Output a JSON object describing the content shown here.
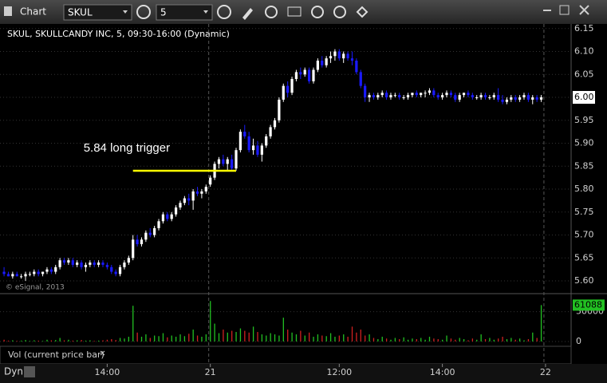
{
  "toolbar": {
    "title": "Chart",
    "symbol": "SKUL",
    "interval": "5"
  },
  "chart_data": {
    "type": "candlestick",
    "title": "SKUL, SKULLCANDY INC, 5, 09:30-16:00 (Dynamic)",
    "copyright": "© eSignal, 2013",
    "volume_title": "Vol (current price bar)",
    "footer": "Dyn",
    "up_color": "#ffffff",
    "down_color": "#1a1aff",
    "volume_up_color": "#22c022",
    "volume_down_color": "#d02020",
    "ylim": [
      5.574,
      6.16
    ],
    "yticks": [
      {
        "value": 5.6,
        "label": "5.60"
      },
      {
        "value": 5.65,
        "label": "5.65"
      },
      {
        "value": 5.7,
        "label": "5.70"
      },
      {
        "value": 5.75,
        "label": "5.75"
      },
      {
        "value": 5.8,
        "label": "5.80"
      },
      {
        "value": 5.85,
        "label": "5.85"
      },
      {
        "value": 5.9,
        "label": "5.90"
      },
      {
        "value": 5.95,
        "label": "5.95"
      },
      {
        "value": 6.0,
        "label": "6.00"
      },
      {
        "value": 6.05,
        "label": "6.05"
      },
      {
        "value": 6.1,
        "label": "6.10"
      },
      {
        "value": 6.15,
        "label": "6.15"
      }
    ],
    "volume_ylim": [
      0,
      75000
    ],
    "volume_yticks": [
      0,
      50000
    ],
    "xlim": [
      -0.2,
      127.5
    ],
    "xticks": [
      {
        "value": 24,
        "label": "14:00"
      },
      {
        "value": 48,
        "label": "21"
      },
      {
        "value": 78,
        "label": "12:00"
      },
      {
        "value": 102,
        "label": "14:00"
      },
      {
        "value": 126,
        "label": "22"
      }
    ],
    "separators": [
      48,
      126
    ],
    "annotation": {
      "text": "5.84 long trigger",
      "price": 5.84,
      "start": 30,
      "end": 54,
      "color": "#ffff00"
    },
    "ohlc": [
      [
        5.62,
        5.63,
        5.61,
        5.615
      ],
      [
        5.615,
        5.62,
        5.61,
        5.61
      ],
      [
        5.61,
        5.62,
        5.605,
        5.615
      ],
      [
        5.615,
        5.62,
        5.61,
        5.61
      ],
      [
        5.61,
        5.615,
        5.605,
        5.61
      ],
      [
        5.61,
        5.62,
        5.6,
        5.615
      ],
      [
        5.615,
        5.62,
        5.61,
        5.615
      ],
      [
        5.615,
        5.625,
        5.61,
        5.62
      ],
      [
        5.62,
        5.625,
        5.61,
        5.615
      ],
      [
        5.615,
        5.62,
        5.61,
        5.62
      ],
      [
        5.62,
        5.63,
        5.615,
        5.625
      ],
      [
        5.625,
        5.63,
        5.615,
        5.62
      ],
      [
        5.62,
        5.635,
        5.615,
        5.63
      ],
      [
        5.63,
        5.65,
        5.625,
        5.645
      ],
      [
        5.645,
        5.65,
        5.635,
        5.64
      ],
      [
        5.64,
        5.65,
        5.635,
        5.645
      ],
      [
        5.645,
        5.65,
        5.63,
        5.635
      ],
      [
        5.635,
        5.645,
        5.63,
        5.64
      ],
      [
        5.64,
        5.645,
        5.625,
        5.63
      ],
      [
        5.63,
        5.64,
        5.62,
        5.635
      ],
      [
        5.635,
        5.645,
        5.63,
        5.64
      ],
      [
        5.64,
        5.645,
        5.63,
        5.635
      ],
      [
        5.635,
        5.645,
        5.63,
        5.64
      ],
      [
        5.64,
        5.645,
        5.63,
        5.635
      ],
      [
        5.635,
        5.64,
        5.625,
        5.63
      ],
      [
        5.63,
        5.635,
        5.615,
        5.62
      ],
      [
        5.62,
        5.625,
        5.61,
        5.615
      ],
      [
        5.615,
        5.635,
        5.61,
        5.63
      ],
      [
        5.63,
        5.645,
        5.625,
        5.64
      ],
      [
        5.64,
        5.655,
        5.635,
        5.65
      ],
      [
        5.65,
        5.7,
        5.645,
        5.69
      ],
      [
        5.69,
        5.7,
        5.675,
        5.68
      ],
      [
        5.68,
        5.695,
        5.675,
        5.69
      ],
      [
        5.69,
        5.71,
        5.685,
        5.705
      ],
      [
        5.705,
        5.715,
        5.695,
        5.7
      ],
      [
        5.7,
        5.72,
        5.695,
        5.715
      ],
      [
        5.715,
        5.735,
        5.71,
        5.73
      ],
      [
        5.73,
        5.75,
        5.725,
        5.745
      ],
      [
        5.745,
        5.75,
        5.73,
        5.735
      ],
      [
        5.735,
        5.75,
        5.73,
        5.745
      ],
      [
        5.745,
        5.765,
        5.74,
        5.76
      ],
      [
        5.76,
        5.775,
        5.755,
        5.77
      ],
      [
        5.77,
        5.785,
        5.765,
        5.78
      ],
      [
        5.78,
        5.79,
        5.765,
        5.775
      ],
      [
        5.775,
        5.8,
        5.755,
        5.795
      ],
      [
        5.795,
        5.805,
        5.785,
        5.79
      ],
      [
        5.79,
        5.8,
        5.78,
        5.795
      ],
      [
        5.795,
        5.81,
        5.79,
        5.805
      ],
      [
        5.81,
        5.83,
        5.805,
        5.825
      ],
      [
        5.825,
        5.86,
        5.82,
        5.855
      ],
      [
        5.855,
        5.87,
        5.845,
        5.865
      ],
      [
        5.865,
        5.875,
        5.85,
        5.855
      ],
      [
        5.855,
        5.87,
        5.84,
        5.865
      ],
      [
        5.865,
        5.875,
        5.84,
        5.845
      ],
      [
        5.845,
        5.89,
        5.84,
        5.885
      ],
      [
        5.885,
        5.93,
        5.88,
        5.925
      ],
      [
        5.925,
        5.94,
        5.91,
        5.915
      ],
      [
        5.915,
        5.925,
        5.88,
        5.885
      ],
      [
        5.885,
        5.91,
        5.875,
        5.895
      ],
      [
        5.895,
        5.905,
        5.87,
        5.875
      ],
      [
        5.875,
        5.9,
        5.86,
        5.895
      ],
      [
        5.895,
        5.92,
        5.89,
        5.915
      ],
      [
        5.915,
        5.94,
        5.91,
        5.935
      ],
      [
        5.935,
        5.955,
        5.93,
        5.95
      ],
      [
        5.95,
        6.0,
        5.945,
        5.995
      ],
      [
        5.995,
        6.03,
        5.99,
        6.025
      ],
      [
        6.025,
        6.035,
        6.0,
        6.01
      ],
      [
        6.01,
        6.045,
        6.005,
        6.04
      ],
      [
        6.04,
        6.06,
        6.035,
        6.055
      ],
      [
        6.055,
        6.065,
        6.04,
        6.05
      ],
      [
        6.05,
        6.065,
        6.045,
        6.06
      ],
      [
        6.06,
        6.065,
        6.03,
        6.035
      ],
      [
        6.035,
        6.065,
        6.03,
        6.06
      ],
      [
        6.06,
        6.085,
        6.055,
        6.08
      ],
      [
        6.08,
        6.09,
        6.065,
        6.07
      ],
      [
        6.07,
        6.09,
        6.065,
        6.085
      ],
      [
        6.085,
        6.1,
        6.075,
        6.09
      ],
      [
        6.09,
        6.105,
        6.08,
        6.1
      ],
      [
        6.1,
        6.105,
        6.08,
        6.085
      ],
      [
        6.085,
        6.1,
        6.075,
        6.095
      ],
      [
        6.095,
        6.1,
        6.08,
        6.085
      ],
      [
        6.085,
        6.1,
        6.07,
        6.08
      ],
      [
        6.08,
        6.085,
        6.05,
        6.055
      ],
      [
        6.055,
        6.06,
        6.02,
        6.025
      ],
      [
        6.025,
        6.03,
        5.99,
        6.0
      ],
      [
        6.0,
        6.01,
        5.99,
        6.005
      ],
      [
        6.005,
        6.01,
        5.995,
        6.0
      ],
      [
        6.0,
        6.01,
        5.995,
        6.005
      ],
      [
        6.005,
        6.015,
        6.0,
        6.01
      ],
      [
        6.01,
        6.015,
        5.995,
        6.0
      ],
      [
        6.0,
        6.01,
        5.995,
        6.005
      ],
      [
        6.005,
        6.01,
        6.0,
        6.005
      ],
      [
        6.005,
        6.01,
        5.995,
        6.0
      ],
      [
        6.0,
        6.005,
        5.995,
        6.0
      ],
      [
        6.0,
        6.01,
        5.995,
        6.005
      ],
      [
        6.005,
        6.01,
        6.0,
        6.01
      ],
      [
        6.01,
        6.015,
        6.0,
        6.005
      ],
      [
        6.005,
        6.01,
        6.0,
        6.01
      ],
      [
        6.01,
        6.015,
        6.0,
        6.01
      ],
      [
        6.01,
        6.02,
        6.005,
        6.015
      ],
      [
        6.015,
        6.02,
        6.0,
        6.005
      ],
      [
        6.005,
        6.01,
        5.995,
        6.0
      ],
      [
        6.0,
        6.01,
        5.995,
        6.005
      ],
      [
        6.005,
        6.015,
        6.0,
        6.01
      ],
      [
        6.01,
        6.015,
        6.0,
        6.005
      ],
      [
        6.005,
        6.01,
        5.99,
        5.995
      ],
      [
        5.995,
        6.01,
        5.99,
        6.005
      ],
      [
        6.005,
        6.01,
        6.0,
        6.01
      ],
      [
        6.01,
        6.015,
        6.0,
        6.005
      ],
      [
        6.005,
        6.01,
        5.995,
        6.0
      ],
      [
        6.0,
        6.005,
        5.995,
        6.0
      ],
      [
        6.0,
        6.01,
        5.995,
        6.005
      ],
      [
        6.005,
        6.01,
        5.995,
        6.0
      ],
      [
        6.0,
        6.005,
        5.995,
        6.0
      ],
      [
        6.0,
        6.01,
        5.995,
        6.005
      ],
      [
        6.005,
        6.02,
        5.99,
        5.995
      ],
      [
        5.995,
        6.005,
        5.985,
        5.99
      ],
      [
        5.99,
        6.0,
        5.985,
        5.995
      ],
      [
        5.995,
        6.005,
        5.99,
        6.0
      ],
      [
        6.0,
        6.005,
        5.99,
        5.995
      ],
      [
        5.995,
        6.005,
        5.99,
        6.0
      ],
      [
        6.0,
        6.01,
        5.995,
        6.005
      ],
      [
        6.005,
        6.01,
        5.99,
        5.995
      ],
      [
        5.995,
        6.005,
        5.985,
        6.0
      ],
      [
        6.0,
        6.005,
        5.99,
        5.995
      ],
      [
        5.995,
        6.005,
        5.99,
        6.0
      ]
    ],
    "volume": [
      3000,
      1500,
      2000,
      1000,
      1500,
      2500,
      1000,
      2000,
      1500,
      1000,
      3000,
      2000,
      2500,
      6000,
      2000,
      3000,
      1500,
      2000,
      2500,
      1500,
      2000,
      1000,
      1500,
      2000,
      3000,
      4000,
      2500,
      6000,
      5000,
      8000,
      60000,
      15000,
      8000,
      12000,
      6000,
      10000,
      9000,
      14000,
      7000,
      10000,
      8000,
      12000,
      9000,
      13000,
      20000,
      10000,
      8000,
      12000,
      68000,
      30000,
      14000,
      20000,
      15000,
      18000,
      16000,
      22000,
      18000,
      15000,
      25000,
      16000,
      12000,
      10000,
      14000,
      12000,
      10000,
      40000,
      20000,
      15000,
      12000,
      18000,
      10000,
      15000,
      8000,
      12000,
      10000,
      9000,
      14000,
      8000,
      10000,
      12000,
      8000,
      25000,
      15000,
      20000,
      10000,
      12000,
      6000,
      4000,
      8000,
      5000,
      3000,
      6000,
      4000,
      7000,
      3000,
      5000,
      4000,
      6000,
      3000,
      8000,
      5000,
      4000,
      3000,
      10000,
      5000,
      3000,
      6000,
      4000,
      2000,
      5000,
      3000,
      12000,
      4000,
      6000,
      3000,
      5000,
      8000,
      4000,
      6000,
      3000,
      5000,
      2000,
      4000,
      15000,
      6000,
      61088
    ]
  }
}
